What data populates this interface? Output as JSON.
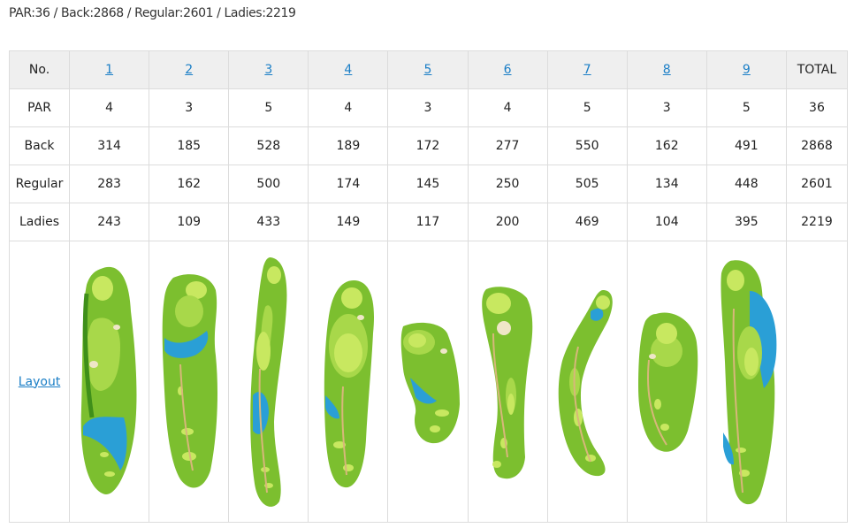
{
  "summary": "PAR:36 / Back:2868 / Regular:2601 / Ladies:2219",
  "table": {
    "header": {
      "no_label": "No.",
      "holes": [
        "1",
        "2",
        "3",
        "4",
        "5",
        "6",
        "7",
        "8",
        "9"
      ],
      "total_label": "TOTAL"
    },
    "rows": [
      {
        "label": "PAR",
        "values": [
          "4",
          "3",
          "5",
          "4",
          "3",
          "4",
          "5",
          "3",
          "5"
        ],
        "total": "36"
      },
      {
        "label": "Back",
        "values": [
          "314",
          "185",
          "528",
          "189",
          "172",
          "277",
          "550",
          "162",
          "491"
        ],
        "total": "2868"
      },
      {
        "label": "Regular",
        "values": [
          "283",
          "162",
          "500",
          "174",
          "145",
          "250",
          "505",
          "134",
          "448"
        ],
        "total": "2601"
      },
      {
        "label": "Ladies",
        "values": [
          "243",
          "109",
          "433",
          "149",
          "117",
          "200",
          "469",
          "104",
          "395"
        ],
        "total": "2219"
      }
    ],
    "layout_label": "Layout"
  },
  "icons": {
    "hole_illustration": "golf-hole-layout-icon"
  },
  "colors": {
    "link": "#1a7ec6",
    "header_bg": "#efefef",
    "fairway": "#7cbf2f",
    "rough": "#3f8f1a",
    "water": "#2a9fd6",
    "green": "#c8e860",
    "bunker": "#efe6c8"
  }
}
